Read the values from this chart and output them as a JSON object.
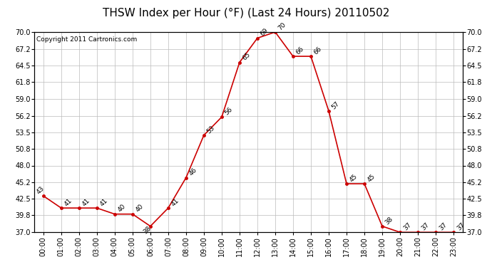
{
  "title": "THSW Index per Hour (°F) (Last 24 Hours) 20110502",
  "copyright": "Copyright 2011 Cartronics.com",
  "hours": [
    "00:00",
    "01:00",
    "02:00",
    "03:00",
    "04:00",
    "05:00",
    "06:00",
    "07:00",
    "08:00",
    "09:00",
    "10:00",
    "11:00",
    "12:00",
    "13:00",
    "14:00",
    "15:00",
    "16:00",
    "17:00",
    "18:00",
    "19:00",
    "20:00",
    "21:00",
    "22:00",
    "23:00"
  ],
  "values": [
    43,
    41,
    41,
    41,
    40,
    40,
    38,
    41,
    46,
    53,
    56,
    65,
    69,
    70,
    66,
    66,
    57,
    45,
    45,
    38,
    37,
    37,
    37,
    37
  ],
  "ylim_min": 37.0,
  "ylim_max": 70.0,
  "yticks": [
    37.0,
    39.8,
    42.5,
    45.2,
    48.0,
    50.8,
    53.5,
    56.2,
    59.0,
    61.8,
    64.5,
    67.2,
    70.0
  ],
  "line_color": "#cc0000",
  "marker_color": "#cc0000",
  "bg_color": "#ffffff",
  "grid_color": "#bbbbbb",
  "title_fontsize": 11,
  "label_fontsize": 7,
  "annotation_fontsize": 6.5,
  "copyright_fontsize": 6.5
}
